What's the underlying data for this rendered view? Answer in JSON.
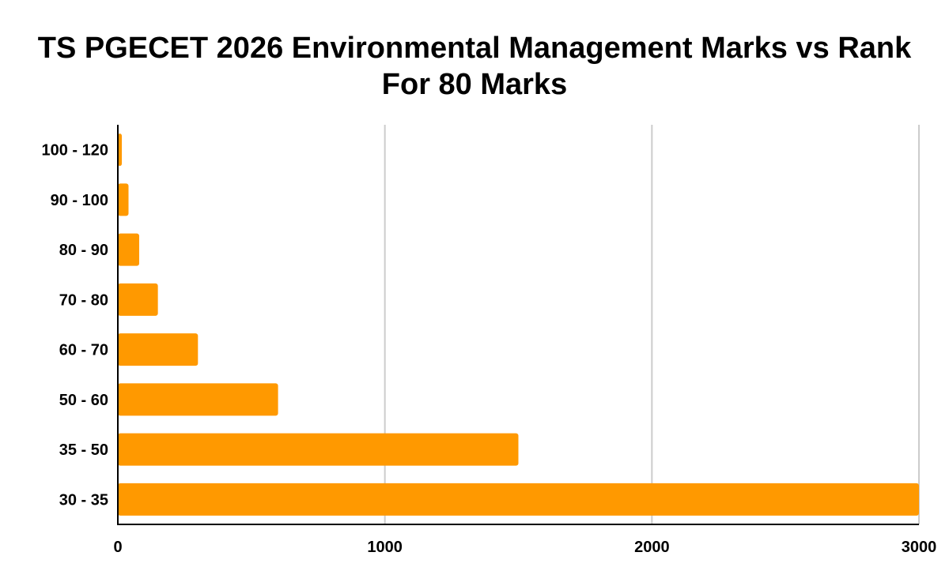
{
  "chart_data": {
    "type": "bar",
    "orientation": "horizontal",
    "title": "TS PGECET 2026 Environmental Management Marks vs Rank For 80 Marks",
    "xlabel": "",
    "ylabel": "",
    "categories": [
      "100 - 120",
      "90 - 100",
      "80 - 90",
      "70 - 80",
      "60 - 70",
      "50 - 60",
      "35 - 50",
      "30 - 35"
    ],
    "series": [
      {
        "values": [
          15,
          40,
          80,
          150,
          300,
          600,
          1500,
          3000
        ]
      }
    ],
    "xlim": [
      0,
      3000
    ],
    "xticks": [
      "0",
      "1000",
      "2000",
      "3000"
    ],
    "grid": "vertical",
    "legend": "none",
    "bar_color": "#ff9900"
  }
}
